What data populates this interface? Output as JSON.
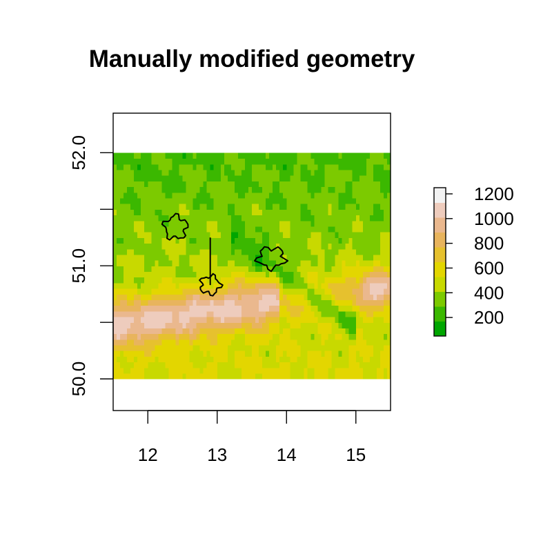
{
  "title": "Manually modified geometry",
  "map": {
    "xlim": [
      11.5,
      15.5
    ],
    "ylim": [
      49.72,
      52.35
    ],
    "raster_extent": {
      "x": [
        11.5,
        15.5
      ],
      "y": [
        50.0,
        52.0
      ]
    },
    "x_ticks": [
      12,
      13,
      14,
      15
    ],
    "x_tick_labels": [
      "12",
      "13",
      "14",
      "15"
    ],
    "y_ticks": [
      50.0,
      50.5,
      51.0,
      51.5,
      52.0
    ],
    "y_tick_labels": [
      "50.0",
      "",
      "51.0",
      "",
      "52.0"
    ],
    "grid": false
  },
  "legend": {
    "placement": "right",
    "range": [
      50,
      1250
    ],
    "ticks": [
      200,
      400,
      600,
      800,
      1000,
      1200
    ],
    "tick_labels": [
      "200",
      "400",
      "600",
      "800",
      "1000",
      "1200"
    ],
    "colors": [
      "#00a600",
      "#3bb800",
      "#7cca00",
      "#c8d900",
      "#e3d600",
      "#e6c12e",
      "#e8b45d",
      "#eab88e",
      "#eeccbd",
      "#f2f2f2"
    ]
  },
  "geometries": [
    {
      "name": "",
      "lon": 12.4,
      "lat": 51.34,
      "lon_r": 0.16,
      "lat_r": 0.1
    },
    {
      "name": "",
      "lon": 12.9,
      "lat": 50.83,
      "lon_r": 0.14,
      "lat_r": 0.08,
      "line_to_lat": 51.25
    },
    {
      "name": "",
      "lon": 13.78,
      "lat": 51.07,
      "lon_r": 0.19,
      "lat_r": 0.09
    }
  ]
}
